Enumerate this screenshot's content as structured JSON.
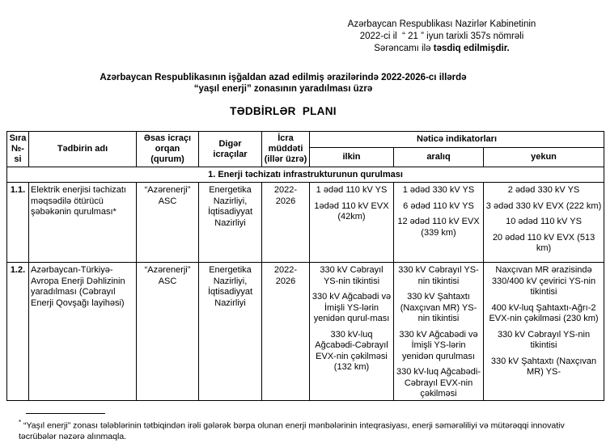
{
  "page": {
    "background_color": "#ffffff",
    "text_color": "#000000",
    "border_color": "#000000"
  },
  "approval_note": {
    "line1": "Azərbaycan Respublikası Nazirlər Kabinetinin",
    "line2": "2022-ci il  “ 21 ” iyun tarixli 357s nömrəli",
    "line3_regular": "Sərəncamı ilə ",
    "line3_bold": "təsdiq edilmişdir."
  },
  "title": {
    "line1": "Azərbaycan Respublikasının işğaldan azad edilmiş ərazilərində 2022-2026-cı illərdə",
    "line2": "“yaşıl enerji” zonasının yaradılması üzrə",
    "heading": "TƏDBİRLƏR  PLANI"
  },
  "table": {
    "headers": {
      "no": "Sıra\n№-si",
      "measure": "Tədbirin adı",
      "main_executor": "Əsas icraçı\norqan\n(qurum)",
      "other_executors": "Digər\nicraçılar",
      "period": "İcra\nmüddəti\n(illər üzrə)",
      "result_indicators": "Nəticə indikatorları",
      "initial": "ilkin",
      "interim": "aralıq",
      "final": "yekun"
    },
    "section_title": "1. Enerji təchizatı infrastrukturunun qurulması",
    "rows": [
      {
        "no": "1.1.",
        "measure": "Elektrik enerjisi təchizatı məqsədilə ötürücü şəbəkənin qurulması*",
        "main_executor": "“Azərenerji”\nASC",
        "other_executors": "Energetika\nNazirliyi,\nİqtisadiyyat\nNazirliyi",
        "period": "2022-\n2026",
        "initial": [
          "1 ədəd 110 kV YS",
          "1ədəd 110 kV EVX (42km)"
        ],
        "interim": [
          "1 ədəd 330 kV YS",
          "6 ədəd 110 kV YS",
          "12 ədəd 110 kV EVX (339 km)"
        ],
        "final": [
          "2 ədəd 330 kV YS",
          "3 ədəd 330 kV EVX (222 km)",
          "10 ədəd 110 kV YS",
          "20 ədəd 110 kV EVX (513 km)"
        ]
      },
      {
        "no": "1.2.",
        "measure": "Azərbaycan-Türkiyə-Avropa Enerji Dəhlizinin yaradılması (Cəbrayıl Enerji Qovşağı layihəsi)",
        "main_executor": "“Azərenerji”\nASC",
        "other_executors": "Energetika\nNazirliyi,\nİqtisadiyyat\nNazirliyi",
        "period": "2022-\n2026",
        "initial": [
          "330 kV Cəbrayıl YS-nin tikintisi",
          "330 kV Ağcabədi və İmişli YS-lərin yenidən qurul-ması",
          "330 kV-luq Ağcabədi-Cəbrayıl EVX-nin çəkilməsi (132 km)"
        ],
        "interim": [
          "330 kV Cəbrayıl YS-nin tikintisi",
          "330 kV Şahtaxtı (Naxçıvan MR) YS-nin tikintisi",
          "330 kV Ağcabədi və İmişli YS-lərin yenidən qurulması",
          "330 kV-luq Ağcabədi-Cəbrayıl EVX-nin çəkilməsi"
        ],
        "final": [
          "Naxçıvan MR ərazisində 330/400 kV çevirici YS-nin tikintisi",
          "400 kV-luq Şahtaxtı-Ağrı-2 EVX-nin çəkilməsi  (230 km)",
          "330 kV Cəbrayıl YS-nin tikintisi",
          "330 kV Şahtaxtı (Naxçıvan MR) YS-"
        ]
      }
    ]
  },
  "footnote": {
    "marker": "*",
    "text": " “Yaşıl enerji” zonası tələblərinin tətbiqindən irəli gələrək bərpa olunan enerji mənbələrinin inteqrasiyası, enerji səmərəliliyi və mütərəqqi innovativ təcrübələr nəzərə alınmaqla."
  }
}
